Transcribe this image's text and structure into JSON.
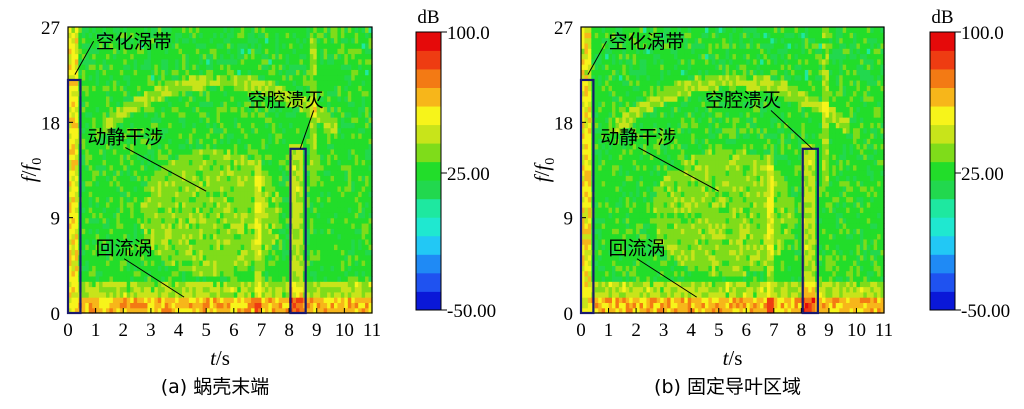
{
  "chart_data": [
    {
      "type": "heatmap",
      "caption": "(a) 蜗壳末端",
      "xlabel_var": "t",
      "xlabel_unit": "/s",
      "ylabel_var": "f",
      "ylabel_sep": "/",
      "ylabel_sub_var": "f",
      "ylabel_sub": "0",
      "xlim": [
        0,
        11
      ],
      "ylim": [
        0,
        27
      ],
      "x_ticks": [
        "0",
        "1",
        "2",
        "3",
        "4",
        "5",
        "6",
        "7",
        "8",
        "9",
        "10",
        "11"
      ],
      "y_ticks": [
        "0",
        "9",
        "18",
        "27"
      ],
      "colorbar": {
        "unit": "dB",
        "labels": [
          "100.0",
          "25.00",
          "-50.00"
        ],
        "range": [
          -50,
          100
        ]
      },
      "annotations": [
        {
          "text": "空化涡带",
          "x": 1.0,
          "y": 25.0,
          "target_x": 0.25,
          "target_y": 22.5
        },
        {
          "text": "空腔溃灭",
          "x": 6.5,
          "y": 19.5,
          "target_x": 8.4,
          "target_y": 15.5
        },
        {
          "text": "动静干涉",
          "x": 0.7,
          "y": 16.0,
          "target_x": 5.0,
          "target_y": 11.5
        },
        {
          "text": "回流涡",
          "x": 1.0,
          "y": 5.5,
          "target_x": 4.2,
          "target_y": 1.5
        }
      ],
      "boxes": [
        {
          "name": "cavitation-vortex-band",
          "t": [
            0.0,
            0.45
          ],
          "f": [
            0,
            22
          ]
        },
        {
          "name": "cavity-collapse",
          "t": [
            8.05,
            8.6
          ],
          "f": [
            0,
            15.5
          ]
        }
      ]
    },
    {
      "type": "heatmap",
      "caption": "(b) 固定导叶区域",
      "xlabel_var": "t",
      "xlabel_unit": "/s",
      "ylabel_var": "f",
      "ylabel_sep": "/",
      "ylabel_sub_var": "f",
      "ylabel_sub": "0",
      "xlim": [
        0,
        11
      ],
      "ylim": [
        0,
        27
      ],
      "x_ticks": [
        "0",
        "1",
        "2",
        "3",
        "4",
        "5",
        "6",
        "7",
        "8",
        "9",
        "10",
        "11"
      ],
      "y_ticks": [
        "0",
        "9",
        "18",
        "27"
      ],
      "colorbar": {
        "unit": "dB",
        "labels": [
          "100.0",
          "25.00",
          "-50.00"
        ],
        "range": [
          -50,
          100
        ]
      },
      "annotations": [
        {
          "text": "空化涡带",
          "x": 1.0,
          "y": 25.0,
          "target_x": 0.25,
          "target_y": 22.5
        },
        {
          "text": "空腔溃灭",
          "x": 4.5,
          "y": 19.5,
          "target_x": 8.4,
          "target_y": 15.5
        },
        {
          "text": "动静干涉",
          "x": 0.7,
          "y": 16.0,
          "target_x": 5.0,
          "target_y": 11.5
        },
        {
          "text": "回流涡",
          "x": 1.0,
          "y": 5.5,
          "target_x": 4.2,
          "target_y": 1.5
        }
      ],
      "boxes": [
        {
          "name": "cavitation-vortex-band",
          "t": [
            0.0,
            0.45
          ],
          "f": [
            0,
            22
          ]
        },
        {
          "name": "cavity-collapse",
          "t": [
            8.05,
            8.6
          ],
          "f": [
            0,
            15.5
          ]
        }
      ]
    }
  ]
}
